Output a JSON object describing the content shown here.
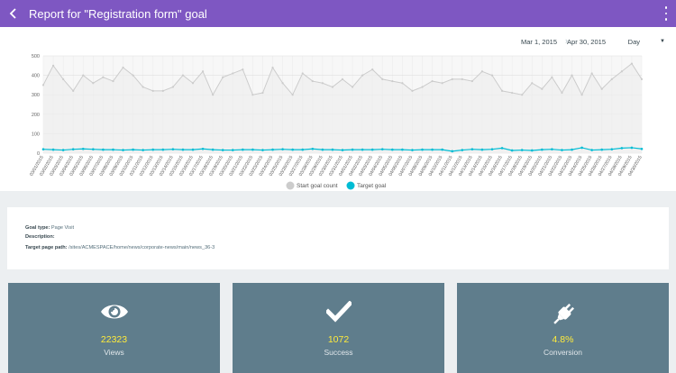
{
  "header": {
    "title": "Report for \"Registration form\" goal",
    "accent": "#7e57c2"
  },
  "filters": {
    "start_date": "Mar 1, 2015",
    "end_date": "Apr 30, 2015",
    "granularity": "Day"
  },
  "chart_data": {
    "type": "line",
    "x": [
      "03/01/2015",
      "03/02/2015",
      "03/03/2015",
      "03/04/2015",
      "03/05/2015",
      "03/06/2015",
      "03/07/2015",
      "03/08/2015",
      "03/09/2015",
      "03/10/2015",
      "03/11/2015",
      "03/12/2015",
      "03/13/2015",
      "03/14/2015",
      "03/15/2015",
      "03/16/2015",
      "03/17/2015",
      "03/18/2015",
      "03/19/2015",
      "03/20/2015",
      "03/21/2015",
      "03/22/2015",
      "03/23/2015",
      "03/24/2015",
      "03/25/2015",
      "03/26/2015",
      "03/27/2015",
      "03/28/2015",
      "03/29/2015",
      "03/30/2015",
      "03/31/2015",
      "04/01/2015",
      "04/02/2015",
      "04/03/2015",
      "04/04/2015",
      "04/05/2015",
      "04/06/2015",
      "04/07/2015",
      "04/08/2015",
      "04/09/2015",
      "04/10/2015",
      "04/11/2015",
      "04/12/2015",
      "04/13/2015",
      "04/14/2015",
      "04/15/2015",
      "04/16/2015",
      "04/17/2015",
      "04/18/2015",
      "04/19/2015",
      "04/20/2015",
      "04/21/2015",
      "04/22/2015",
      "04/23/2015",
      "04/24/2015",
      "04/25/2015",
      "04/26/2015",
      "04/27/2015",
      "04/28/2015",
      "04/29/2015",
      "04/30/2015"
    ],
    "series": [
      {
        "name": "Start goal count",
        "color": "#cccccc",
        "values": [
          350,
          450,
          380,
          320,
          400,
          360,
          390,
          370,
          440,
          400,
          340,
          320,
          320,
          340,
          400,
          360,
          420,
          300,
          390,
          410,
          430,
          300,
          310,
          440,
          360,
          300,
          410,
          370,
          360,
          340,
          380,
          340,
          400,
          430,
          380,
          370,
          360,
          320,
          340,
          370,
          360,
          380,
          380,
          370,
          420,
          400,
          320,
          310,
          300,
          360,
          330,
          390,
          310,
          400,
          300,
          410,
          330,
          380,
          420,
          460,
          380
        ],
        "legend": "Start goal count"
      },
      {
        "name": "Target goal",
        "color": "#00bcd4",
        "values": [
          20,
          18,
          16,
          20,
          22,
          20,
          18,
          18,
          16,
          18,
          16,
          18,
          18,
          20,
          18,
          18,
          22,
          18,
          16,
          16,
          18,
          18,
          16,
          18,
          20,
          18,
          18,
          22,
          18,
          18,
          16,
          18,
          18,
          18,
          20,
          18,
          18,
          16,
          18,
          18,
          18,
          10,
          16,
          20,
          18,
          20,
          26,
          14,
          16,
          14,
          18,
          20,
          16,
          18,
          28,
          16,
          18,
          20,
          26,
          28,
          22
        ],
        "legend": "Target goal"
      }
    ],
    "yticks": [
      "0",
      "100",
      "200",
      "300",
      "400",
      "500"
    ],
    "ylim": [
      0,
      500
    ],
    "grid": true,
    "legend_position": "bottom"
  },
  "goal": {
    "type_label": "Goal type:",
    "type_value": "Page Visit",
    "desc_label": "Description:",
    "desc_value": "",
    "path_label": "Target page path:",
    "path_value": "/sites/ACMESPACE/home/news/corporate-news/main/news_36-3"
  },
  "stats": [
    {
      "icon": "eye-icon",
      "value": "22323",
      "label": "Views"
    },
    {
      "icon": "checkmark-icon",
      "value": "1072",
      "label": "Success"
    },
    {
      "icon": "plug-icon",
      "value": "4.8%",
      "label": "Conversion"
    }
  ]
}
